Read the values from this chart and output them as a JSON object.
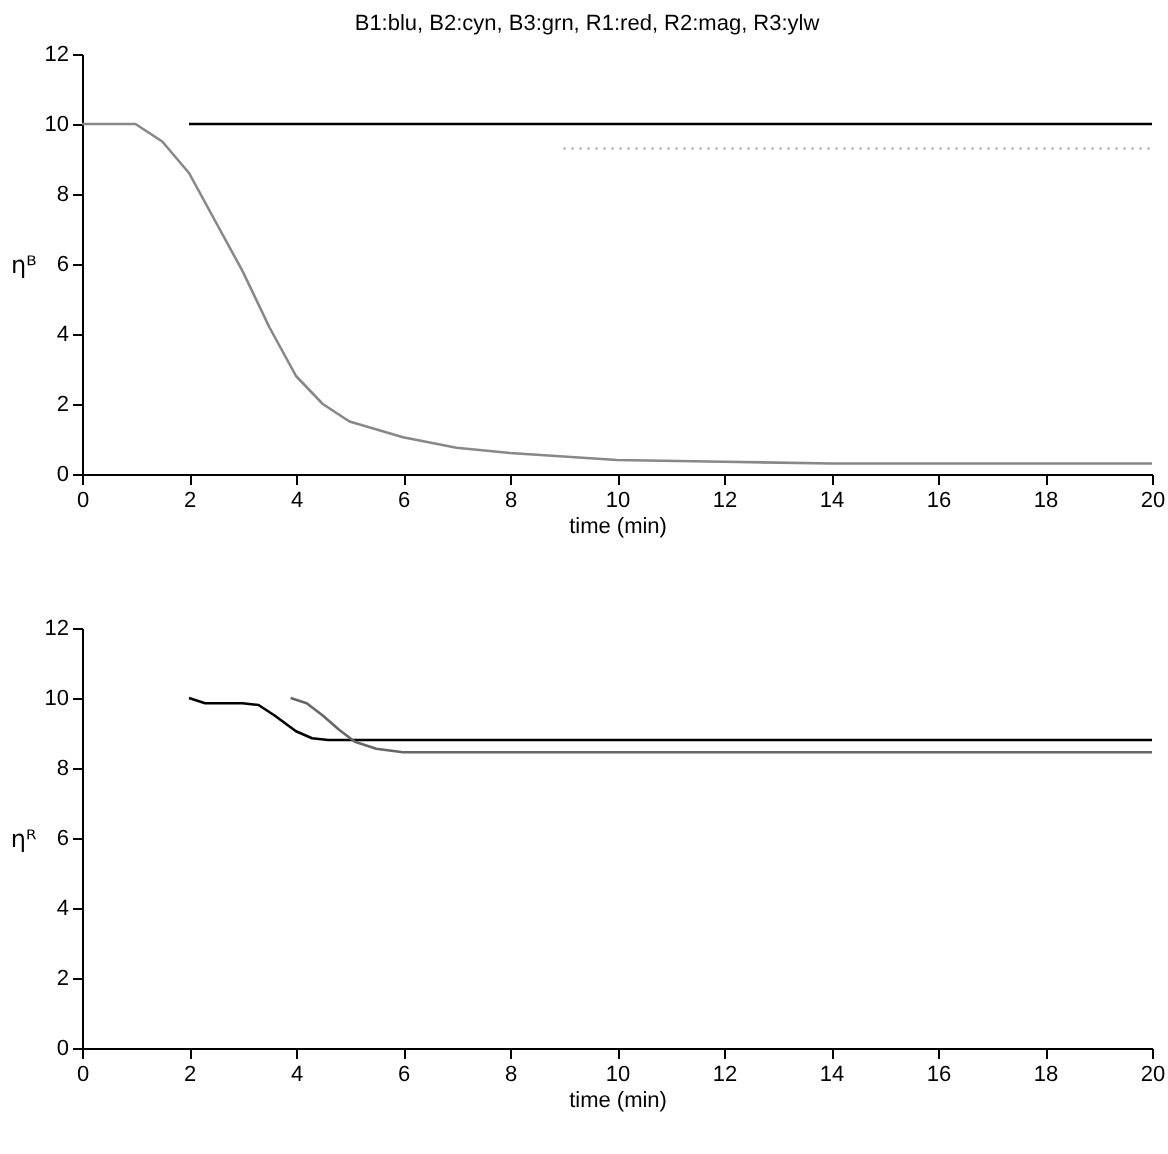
{
  "chart_data": [
    {
      "type": "line",
      "title": "B1:blu, B2:cyn, B3:grn, R1:red, R2:mag, R3:ylw",
      "xlabel": "time (min)",
      "ylabel": "ηᴮ",
      "xlim": [
        0,
        20
      ],
      "ylim": [
        0,
        12
      ],
      "xticks": [
        0,
        2,
        4,
        6,
        8,
        10,
        12,
        14,
        16,
        18,
        20
      ],
      "yticks": [
        0,
        2,
        4,
        6,
        8,
        10,
        12
      ],
      "grid": false,
      "series": [
        {
          "color": "#000000",
          "x": [
            2,
            20
          ],
          "values": [
            10,
            10
          ]
        },
        {
          "color": "#aaaaaa",
          "line_style": "dotted",
          "x": [
            9,
            20
          ],
          "values": [
            9.3,
            9.3
          ]
        },
        {
          "color": "#888888",
          "x": [
            0,
            1,
            1.5,
            2,
            2.5,
            3,
            3.5,
            4,
            4.5,
            5,
            6,
            7,
            8,
            9,
            10,
            12,
            14,
            16,
            18,
            20
          ],
          "values": [
            10,
            10,
            9.5,
            8.6,
            7.2,
            5.8,
            4.2,
            2.8,
            2,
            1.5,
            1.05,
            0.75,
            0.6,
            0.5,
            0.4,
            0.35,
            0.3,
            0.3,
            0.3,
            0.3
          ]
        }
      ]
    },
    {
      "type": "line",
      "xlabel": "time (min)",
      "ylabel": "ηᴿ",
      "xlim": [
        0,
        20
      ],
      "ylim": [
        0,
        12
      ],
      "xticks": [
        0,
        2,
        4,
        6,
        8,
        10,
        12,
        14,
        16,
        18,
        20
      ],
      "yticks": [
        0,
        2,
        4,
        6,
        8,
        10,
        12
      ],
      "grid": false,
      "series": [
        {
          "color": "#000000",
          "x": [
            2,
            2.3,
            2.6,
            3,
            3.3,
            3.6,
            4,
            4.3,
            4.6,
            5,
            6,
            10,
            20
          ],
          "values": [
            10,
            9.85,
            9.85,
            9.85,
            9.8,
            9.5,
            9.05,
            8.85,
            8.8,
            8.8,
            8.8,
            8.8,
            8.8
          ]
        },
        {
          "color": "#666666",
          "x": [
            3.9,
            4.2,
            4.5,
            4.8,
            5.1,
            5.5,
            6,
            7,
            10,
            20
          ],
          "values": [
            10,
            9.85,
            9.5,
            9.1,
            8.75,
            8.55,
            8.45,
            8.45,
            8.45,
            8.45
          ]
        }
      ]
    }
  ]
}
